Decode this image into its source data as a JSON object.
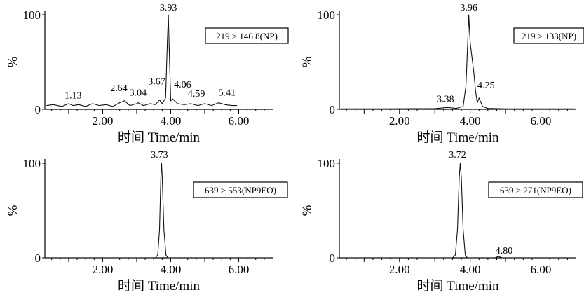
{
  "chart_data": [
    {
      "type": "line",
      "transition": "219 > 146.8(NP)",
      "xlabel": "时间 Time/min",
      "ylabel": "%",
      "xlim": [
        0.3,
        7.0
      ],
      "ylim": [
        0,
        100
      ],
      "xticks": [
        {
          "value": 2.0,
          "label": "2.00"
        },
        {
          "value": 4.0,
          "label": "4.00"
        },
        {
          "value": 6.0,
          "label": "6.00"
        }
      ],
      "yticks": [
        {
          "value": 0,
          "label": "0"
        },
        {
          "value": 100,
          "label": "100"
        }
      ],
      "series": [
        {
          "values": [
            [
              0.35,
              4
            ],
            [
              0.55,
              5
            ],
            [
              0.8,
              3
            ],
            [
              1.0,
              6
            ],
            [
              1.13,
              4
            ],
            [
              1.3,
              5
            ],
            [
              1.5,
              3
            ],
            [
              1.7,
              6
            ],
            [
              1.9,
              4
            ],
            [
              2.1,
              5
            ],
            [
              2.3,
              3
            ],
            [
              2.5,
              7
            ],
            [
              2.64,
              9
            ],
            [
              2.8,
              4
            ],
            [
              3.0,
              6
            ],
            [
              3.04,
              7
            ],
            [
              3.2,
              4
            ],
            [
              3.4,
              6
            ],
            [
              3.55,
              5
            ],
            [
              3.67,
              10
            ],
            [
              3.75,
              6
            ],
            [
              3.85,
              12
            ],
            [
              3.9,
              70
            ],
            [
              3.93,
              100
            ],
            [
              3.96,
              60
            ],
            [
              4.0,
              9
            ],
            [
              4.06,
              11
            ],
            [
              4.2,
              6
            ],
            [
              4.4,
              5
            ],
            [
              4.59,
              6
            ],
            [
              4.8,
              4
            ],
            [
              5.0,
              6
            ],
            [
              5.2,
              4
            ],
            [
              5.41,
              7
            ],
            [
              5.6,
              5
            ],
            [
              5.8,
              4
            ],
            [
              5.95,
              4
            ]
          ]
        }
      ],
      "annotations": [
        {
          "x": 3.93,
          "y": 100,
          "label": "3.93"
        },
        {
          "x": 1.13,
          "y": 4,
          "label": "1.13"
        },
        {
          "x": 2.64,
          "y": 9,
          "label": "2.64"
        },
        {
          "x": 3.04,
          "y": 7,
          "label": "3.04"
        },
        {
          "x": 3.67,
          "y": 10,
          "label": "3.67"
        },
        {
          "x": 4.06,
          "y": 11,
          "label": "4.06"
        },
        {
          "x": 4.59,
          "y": 6,
          "label": "4.59"
        },
        {
          "x": 5.41,
          "y": 7,
          "label": "5.41"
        }
      ]
    },
    {
      "type": "line",
      "transition": "219 > 133(NP)",
      "xlabel": "时间 Time/min",
      "ylabel": "%",
      "xlim": [
        0.3,
        7.0
      ],
      "ylim": [
        0,
        100
      ],
      "xticks": [
        {
          "value": 2.0,
          "label": "2.00"
        },
        {
          "value": 4.0,
          "label": "4.00"
        },
        {
          "value": 6.0,
          "label": "6.00"
        }
      ],
      "yticks": [
        {
          "value": 0,
          "label": "0"
        },
        {
          "value": 100,
          "label": "100"
        }
      ],
      "series": [
        {
          "values": [
            [
              0.35,
              0.5
            ],
            [
              1.5,
              0.5
            ],
            [
              3.0,
              0.8
            ],
            [
              3.38,
              2
            ],
            [
              3.6,
              1
            ],
            [
              3.8,
              3
            ],
            [
              3.88,
              25
            ],
            [
              3.93,
              70
            ],
            [
              3.96,
              100
            ],
            [
              4.0,
              70
            ],
            [
              4.05,
              55
            ],
            [
              4.1,
              40
            ],
            [
              4.15,
              20
            ],
            [
              4.2,
              7
            ],
            [
              4.25,
              12
            ],
            [
              4.35,
              3
            ],
            [
              4.5,
              1
            ],
            [
              5.0,
              0.5
            ],
            [
              6.0,
              0.5
            ],
            [
              6.95,
              0.5
            ]
          ]
        }
      ],
      "annotations": [
        {
          "x": 3.96,
          "y": 100,
          "label": "3.96"
        },
        {
          "x": 3.38,
          "y": 2,
          "label": "3.38"
        },
        {
          "x": 4.25,
          "y": 12,
          "label": "4.25"
        }
      ]
    },
    {
      "type": "line",
      "transition": "639 > 553(NP9EO)",
      "xlabel": "时间 Time/min",
      "ylabel": "%",
      "xlim": [
        0.3,
        7.0
      ],
      "ylim": [
        0,
        100
      ],
      "xticks": [
        {
          "value": 2.0,
          "label": "2.00"
        },
        {
          "value": 4.0,
          "label": "4.00"
        },
        {
          "value": 6.0,
          "label": "6.00"
        }
      ],
      "yticks": [
        {
          "value": 0,
          "label": "0"
        },
        {
          "value": 100,
          "label": "100"
        }
      ],
      "series": [
        {
          "values": [
            [
              0.35,
              0
            ],
            [
              3.55,
              0
            ],
            [
              3.62,
              3
            ],
            [
              3.67,
              30
            ],
            [
              3.71,
              85
            ],
            [
              3.73,
              100
            ],
            [
              3.75,
              85
            ],
            [
              3.8,
              30
            ],
            [
              3.86,
              3
            ],
            [
              3.92,
              0
            ],
            [
              6.95,
              0
            ]
          ]
        }
      ],
      "annotations": [
        {
          "x": 3.73,
          "y": 100,
          "label": "3.73"
        }
      ]
    },
    {
      "type": "line",
      "transition": "639 > 271(NP9EO)",
      "xlabel": "时间 Time/min",
      "ylabel": "%",
      "xlim": [
        0.3,
        7.0
      ],
      "ylim": [
        0,
        100
      ],
      "xticks": [
        {
          "value": 2.0,
          "label": "2.00"
        },
        {
          "value": 4.0,
          "label": "4.00"
        },
        {
          "value": 6.0,
          "label": "6.00"
        }
      ],
      "yticks": [
        {
          "value": 0,
          "label": "0"
        },
        {
          "value": 100,
          "label": "100"
        }
      ],
      "series": [
        {
          "values": [
            [
              0.35,
              0
            ],
            [
              3.5,
              0
            ],
            [
              3.58,
              3
            ],
            [
              3.64,
              30
            ],
            [
              3.69,
              85
            ],
            [
              3.72,
              100
            ],
            [
              3.75,
              85
            ],
            [
              3.8,
              30
            ],
            [
              3.86,
              3
            ],
            [
              3.92,
              0
            ],
            [
              4.7,
              0
            ],
            [
              4.8,
              1.5
            ],
            [
              4.9,
              0
            ],
            [
              6.95,
              0
            ]
          ]
        }
      ],
      "annotations": [
        {
          "x": 3.72,
          "y": 100,
          "label": "3.72"
        },
        {
          "x": 4.8,
          "y": 1.5,
          "label": "4.80"
        }
      ]
    }
  ]
}
